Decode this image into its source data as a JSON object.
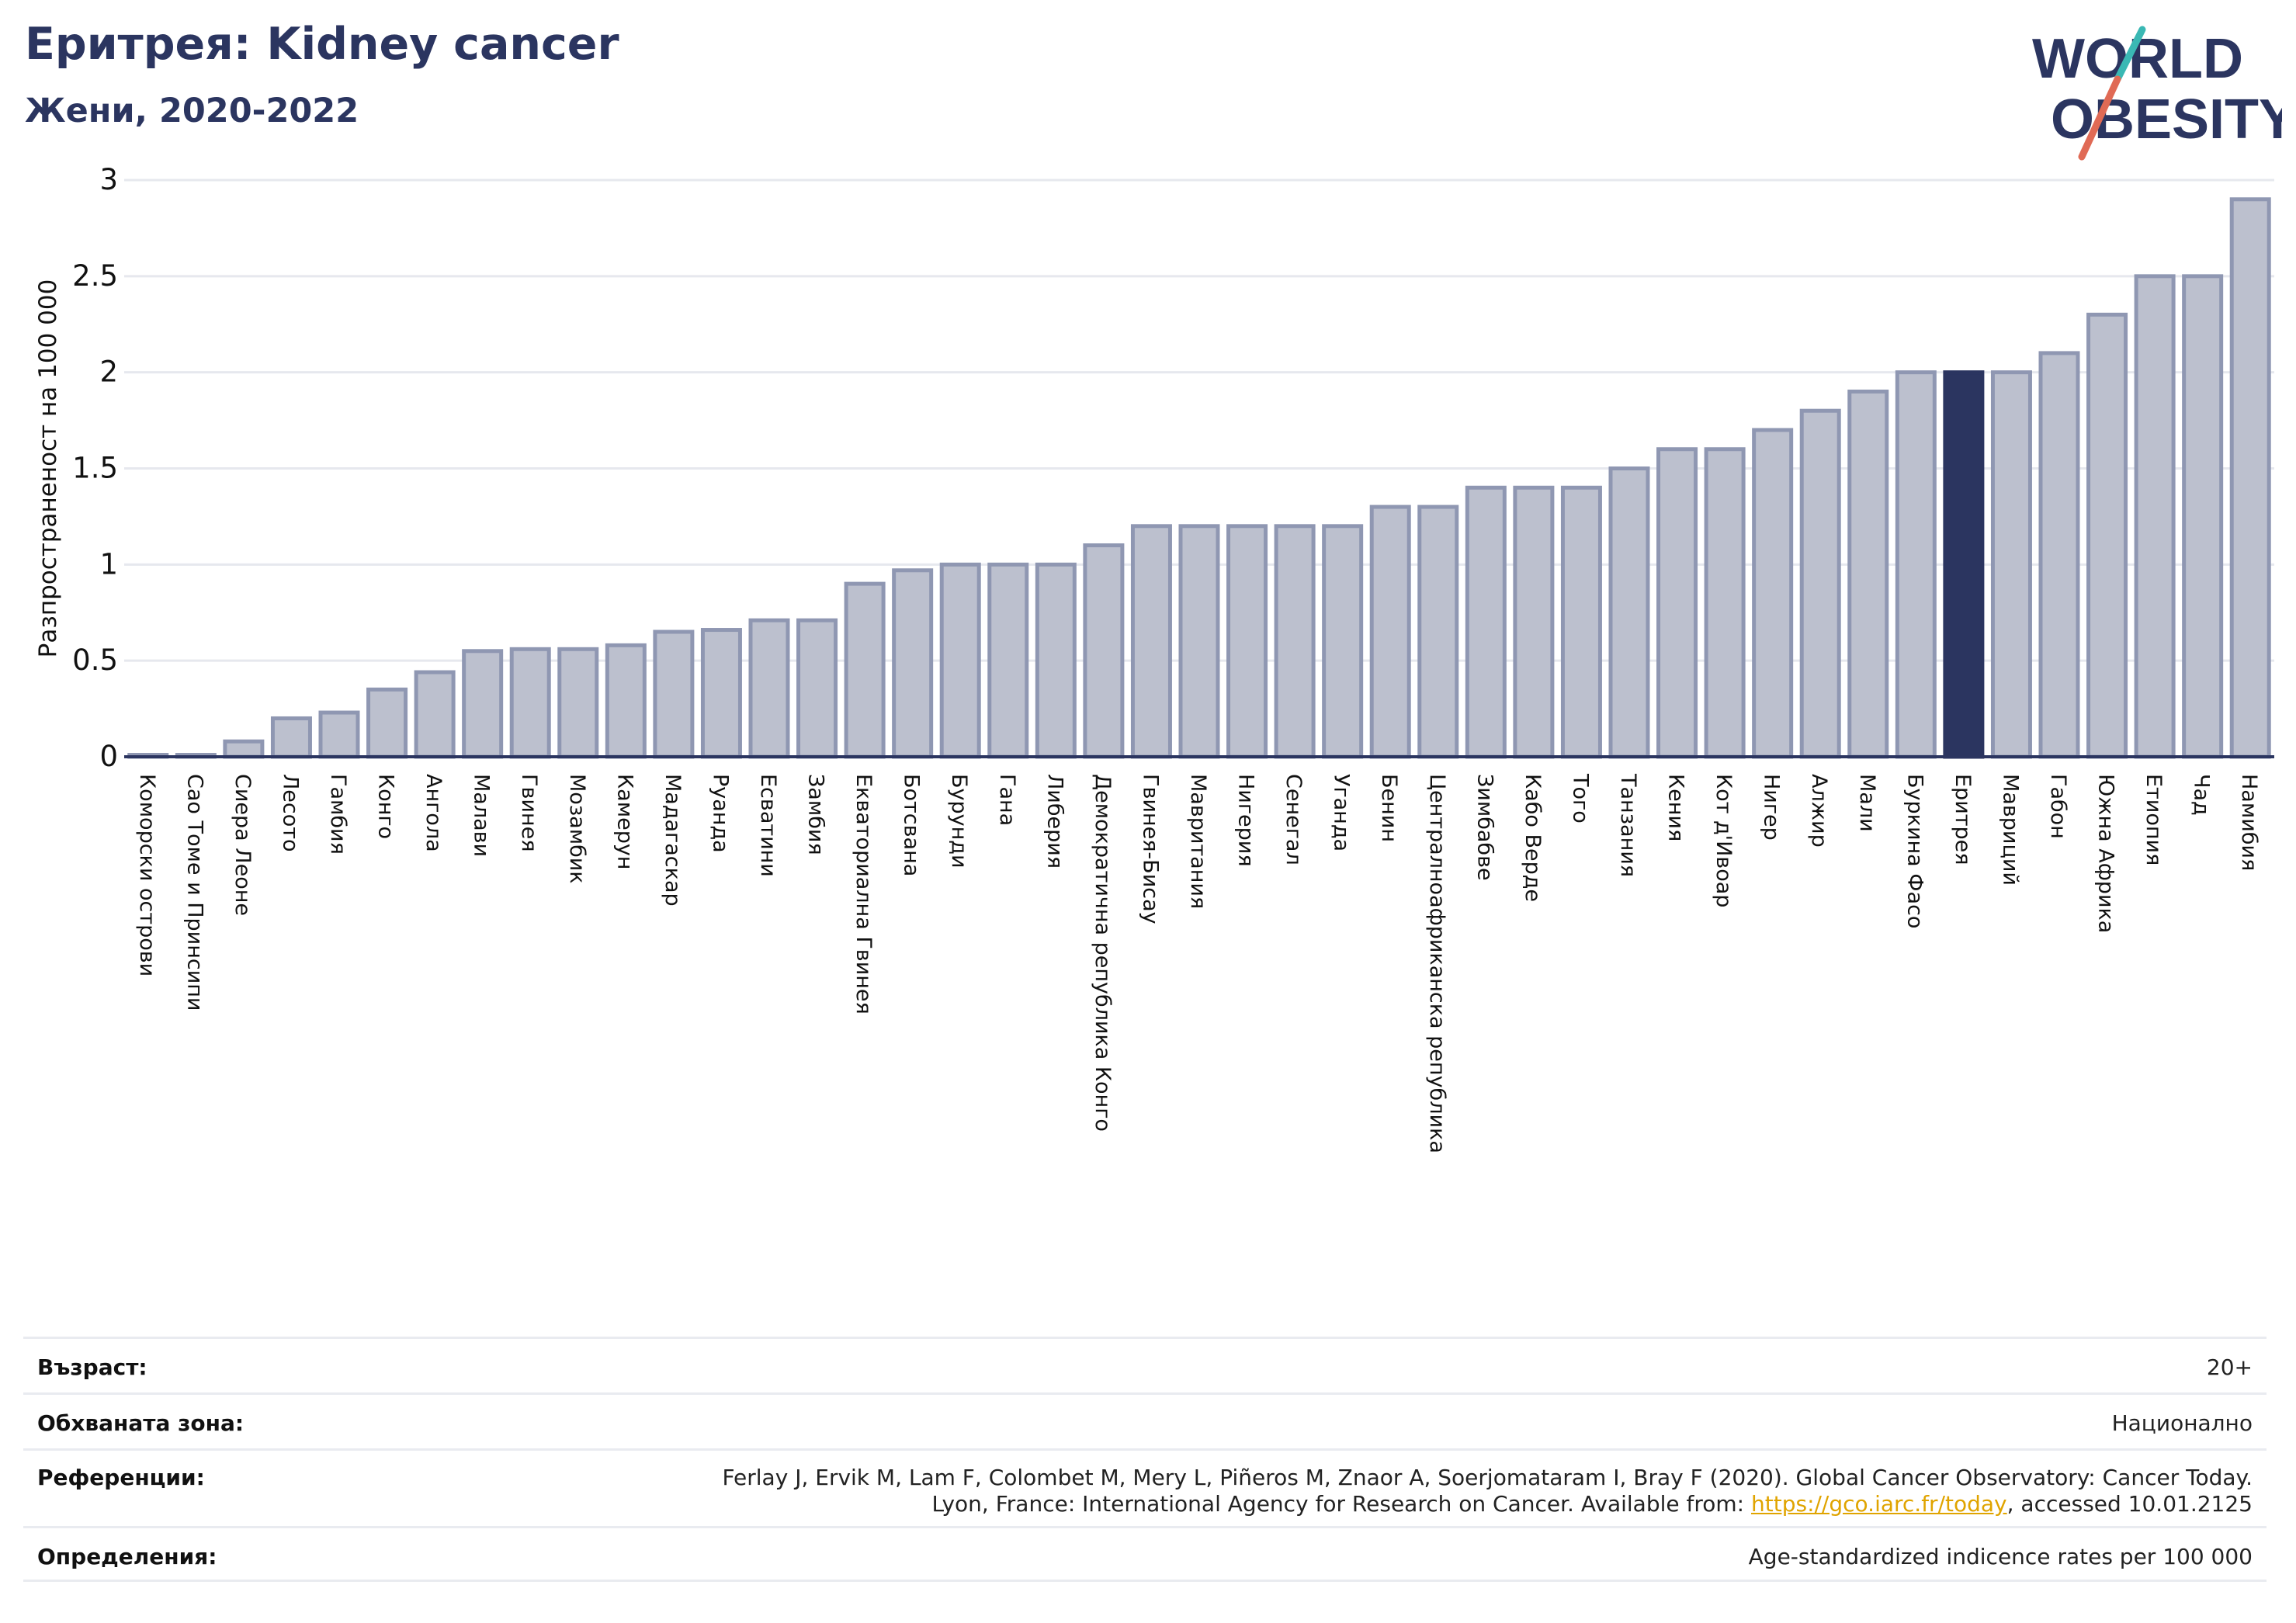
{
  "header": {
    "title": "Еритрея: Kidney cancer",
    "subtitle": "Жени, 2020-2022"
  },
  "logo": {
    "line1": "WORLD",
    "line2": "OBESITY"
  },
  "chart_data": {
    "type": "bar",
    "ylabel": "Разпространеност  на 100 000",
    "ylim": [
      0,
      3
    ],
    "yticks": [
      "0",
      "0.5",
      "1",
      "1.5",
      "2",
      "2.5",
      "3"
    ],
    "grid": true,
    "highlight_category": "Еритрея",
    "colors": {
      "bar": "#bcc0ce",
      "bar_edge": "#8f97b2",
      "highlight": "#2b3560"
    },
    "categories": [
      "Коморски острови",
      "Сао Томе и Принсипи",
      "Сиера Леоне",
      "Лесото",
      "Гамбия",
      "Конго",
      "Ангола",
      "Малави",
      "Гвинея",
      "Мозамбик",
      "Камерун",
      "Мадагаскар",
      "Руанда",
      "Есватини",
      "Замбия",
      "Екваториална Гвинея",
      "Ботсвана",
      "Бурунди",
      "Гана",
      "Либерия",
      "Демократична република Конго",
      "Гвинея-Бисау",
      "Мавритания",
      "Нигерия",
      "Сенегал",
      "Уганда",
      "Бенин",
      "Централноафриканска република",
      "Зимбабве",
      "Кабо Верде",
      "Того",
      "Танзания",
      "Кения",
      "Кот д'Ивоар",
      "Нигер",
      "Алжир",
      "Мали",
      "Буркина Фасо",
      "Еритрея",
      "Мавриций",
      "Габон",
      "Южна Африка",
      "Етиопия",
      "Чад",
      "Намибия"
    ],
    "values": [
      0.01,
      0.01,
      0.08,
      0.2,
      0.23,
      0.35,
      0.44,
      0.55,
      0.56,
      0.56,
      0.58,
      0.65,
      0.66,
      0.71,
      0.71,
      0.9,
      0.97,
      1.0,
      1.0,
      1.0,
      1.1,
      1.2,
      1.2,
      1.2,
      1.2,
      1.2,
      1.3,
      1.3,
      1.4,
      1.4,
      1.4,
      1.5,
      1.6,
      1.6,
      1.7,
      1.8,
      1.9,
      2.0,
      2.0,
      2.0,
      2.1,
      2.3,
      2.5,
      2.5,
      2.9
    ]
  },
  "info": {
    "age_label": "Възраст:",
    "age_value": "20+",
    "area_label": "Обхваната зона:",
    "area_value": "Национално",
    "ref_label": "Референции:",
    "ref_line1": "Ferlay J, Ervik M, Lam F, Colombet M, Mery L, Piñeros M, Znaor A, Soerjomataram I, Bray F (2020). Global Cancer Observatory: Cancer Today.",
    "ref_line2_pre": "Lyon, France: International Agency for Research on Cancer. Available from: ",
    "ref_link": "https://gco.iarc.fr/today",
    "ref_line2_post": ", accessed 10.01.2125",
    "def_label": "Определения:",
    "def_value": "Age-standardized indicence rates per 100 000"
  }
}
